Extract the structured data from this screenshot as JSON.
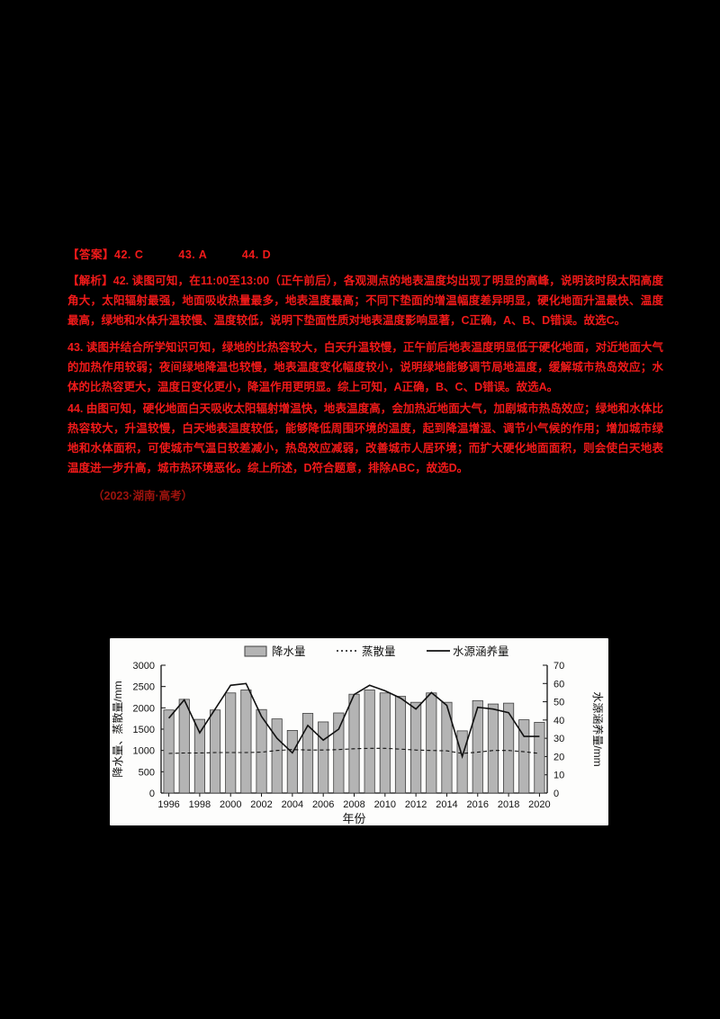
{
  "page": {
    "background": "#000000",
    "text_color": "#f21a1a",
    "citation_color": "#9e130d"
  },
  "answers_line": "【答案】42. C　　　43. A　　　44. D",
  "answers": {
    "q42": "C",
    "q43": "A",
    "q44": "D"
  },
  "explanation": {
    "para_42": "【解析】42. 读图可知，在11:00至13:00（正午前后），各观测点的地表温度均出现了明显的高峰，说明该时段太阳高度角大，太阳辐射最强，地面吸收热量最多，地表温度最高；不同下垫面的增温幅度差异明显，硬化地面升温最快、温度最高，绿地和水体升温较慢、温度较低，说明下垫面性质对地表温度影响显著，C正确，A、B、D错误。故选C。",
    "para_43": "43. 读图并结合所学知识可知，绿地的比热容较大，白天升温较慢，正午前后地表温度明显低于硬化地面，对近地面大气的加热作用较弱；夜间绿地降温也较慢，地表温度变化幅度较小，说明绿地能够调节局地温度，缓解城市热岛效应；水体的比热容更大，温度日变化更小，降温作用更明显。综上可知，A正确，B、C、D错误。故选A。",
    "para_44": "44. 由图可知，硬化地面白天吸收太阳辐射增温快，地表温度高，会加热近地面大气，加剧城市热岛效应；绿地和水体比热容较大，升温较慢，白天地表温度较低，能够降低周围环境的温度，起到降温增湿、调节小气候的作用；增加城市绿地和水体面积，可使城市气温日较差减小，热岛效应减弱，改善城市人居环境；而扩大硬化地面面积，则会使白天地表温度进一步升高，城市热环境恶化。综上所述，D符合题意，排除ABC，故选D。",
    "citation": "（2023·湖南·高考）"
  },
  "chart_data": {
    "type": "bar",
    "title": "",
    "xlabel": "年份",
    "ylabel_left": "降水量、蒸散量/mm",
    "ylabel_right": "水源涵养量/mm",
    "ylim_left": [
      0,
      3000
    ],
    "yticks_left": [
      0,
      500,
      1000,
      1500,
      2000,
      2500,
      3000
    ],
    "ylim_right": [
      0,
      70
    ],
    "yticks_right": [
      0,
      10,
      20,
      30,
      40,
      50,
      60,
      70
    ],
    "grid": false,
    "legend_position": "top",
    "bar_color": "#b4b4b4",
    "bar_border": "#3f3f3f",
    "line_color": "#111111",
    "categories": [
      1996,
      1997,
      1998,
      1999,
      2000,
      2001,
      2002,
      2003,
      2004,
      2005,
      2006,
      2007,
      2008,
      2009,
      2010,
      2011,
      2012,
      2013,
      2014,
      2015,
      2016,
      2017,
      2018,
      2019,
      2020
    ],
    "xtick_step": 2,
    "series": [
      {
        "name": "降水量",
        "type": "bar",
        "axis": "left",
        "values": [
          1950,
          2200,
          1730,
          1950,
          2350,
          2420,
          1960,
          1740,
          1470,
          1870,
          1670,
          1880,
          2320,
          2420,
          2350,
          2270,
          2130,
          2350,
          2130,
          1460,
          2170,
          2090,
          2110,
          1720,
          1660
        ]
      },
      {
        "name": "蒸散量",
        "type": "line-dashed",
        "axis": "left",
        "values": [
          930,
          940,
          940,
          950,
          950,
          950,
          960,
          1000,
          1020,
          1010,
          1010,
          1020,
          1040,
          1050,
          1050,
          1030,
          1010,
          1000,
          990,
          930,
          960,
          1000,
          1000,
          970,
          930
        ]
      },
      {
        "name": "水源涵养量",
        "type": "line",
        "axis": "right",
        "values": [
          41,
          51,
          33,
          46,
          59,
          60,
          42,
          30,
          22,
          37,
          29,
          35,
          54,
          59,
          56,
          52,
          46,
          55,
          48,
          20,
          47,
          46,
          44,
          31,
          31
        ]
      }
    ]
  }
}
